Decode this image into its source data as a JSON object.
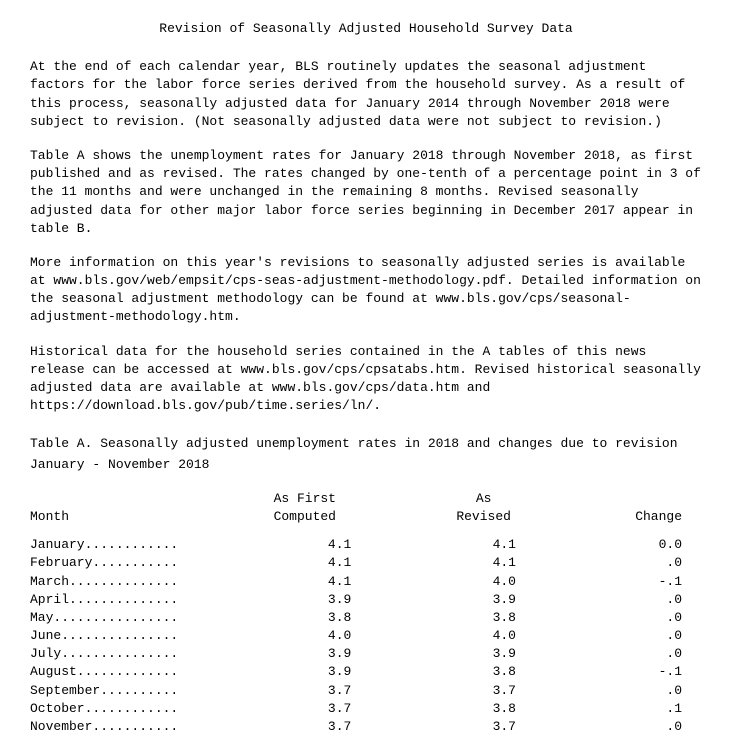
{
  "title": "Revision of Seasonally Adjusted Household Survey Data",
  "paragraphs": [
    "At the end of each calendar year, BLS routinely updates the seasonal adjustment factors for the labor force series derived from the household survey. As a result of this process, seasonally adjusted data for January 2014 through November 2018 were subject to revision. (Not seasonally adjusted data were not subject to revision.)",
    "Table A shows the unemployment rates for January 2018 through November 2018, as first published and as revised. The rates changed by one-tenth of a percentage point in 3 of the 11 months and were unchanged in the remaining 8 months. Revised seasonally adjusted data for other major labor force series beginning in December 2017 appear in table B.",
    "More information on this year's revisions to seasonally adjusted series is available at www.bls.gov/web/empsit/cps-seas-adjustment-methodology.pdf. Detailed information on the seasonal adjustment methodology can be found at www.bls.gov/cps/seasonal-adjustment-methodology.htm.",
    "Historical data for the household series contained in the A tables of this news release can be accessed at www.bls.gov/cps/cpsatabs.htm. Revised historical seasonally adjusted data are available at www.bls.gov/cps/data.htm and https://download.bls.gov/pub/time.series/ln/."
  ],
  "table": {
    "title": "Table A. Seasonally adjusted unemployment rates in 2018 and changes due to revision",
    "subtitle": "January - November 2018",
    "headers": {
      "month": "Month",
      "first_l1": "As First",
      "first_l2": "Computed",
      "rev_l1": "As",
      "rev_l2": "Revised",
      "change": "Change"
    },
    "rows": [
      {
        "month": "January............",
        "first": "4.1",
        "revised": "4.1",
        "change": "0.0"
      },
      {
        "month": "February...........",
        "first": "4.1",
        "revised": "4.1",
        "change": ".0"
      },
      {
        "month": "March..............",
        "first": "4.1",
        "revised": "4.0",
        "change": "-.1"
      },
      {
        "month": "April..............",
        "first": "3.9",
        "revised": "3.9",
        "change": ".0"
      },
      {
        "month": "May................",
        "first": "3.8",
        "revised": "3.8",
        "change": ".0"
      },
      {
        "month": "June...............",
        "first": "4.0",
        "revised": "4.0",
        "change": ".0"
      },
      {
        "month": "July...............",
        "first": "3.9",
        "revised": "3.9",
        "change": ".0"
      },
      {
        "month": "August.............",
        "first": "3.9",
        "revised": "3.8",
        "change": "-.1"
      },
      {
        "month": "September..........",
        "first": "3.7",
        "revised": "3.7",
        "change": ".0"
      },
      {
        "month": "October............",
        "first": "3.7",
        "revised": "3.8",
        "change": ".1"
      },
      {
        "month": "November...........",
        "first": "3.7",
        "revised": "3.7",
        "change": ".0"
      }
    ]
  }
}
